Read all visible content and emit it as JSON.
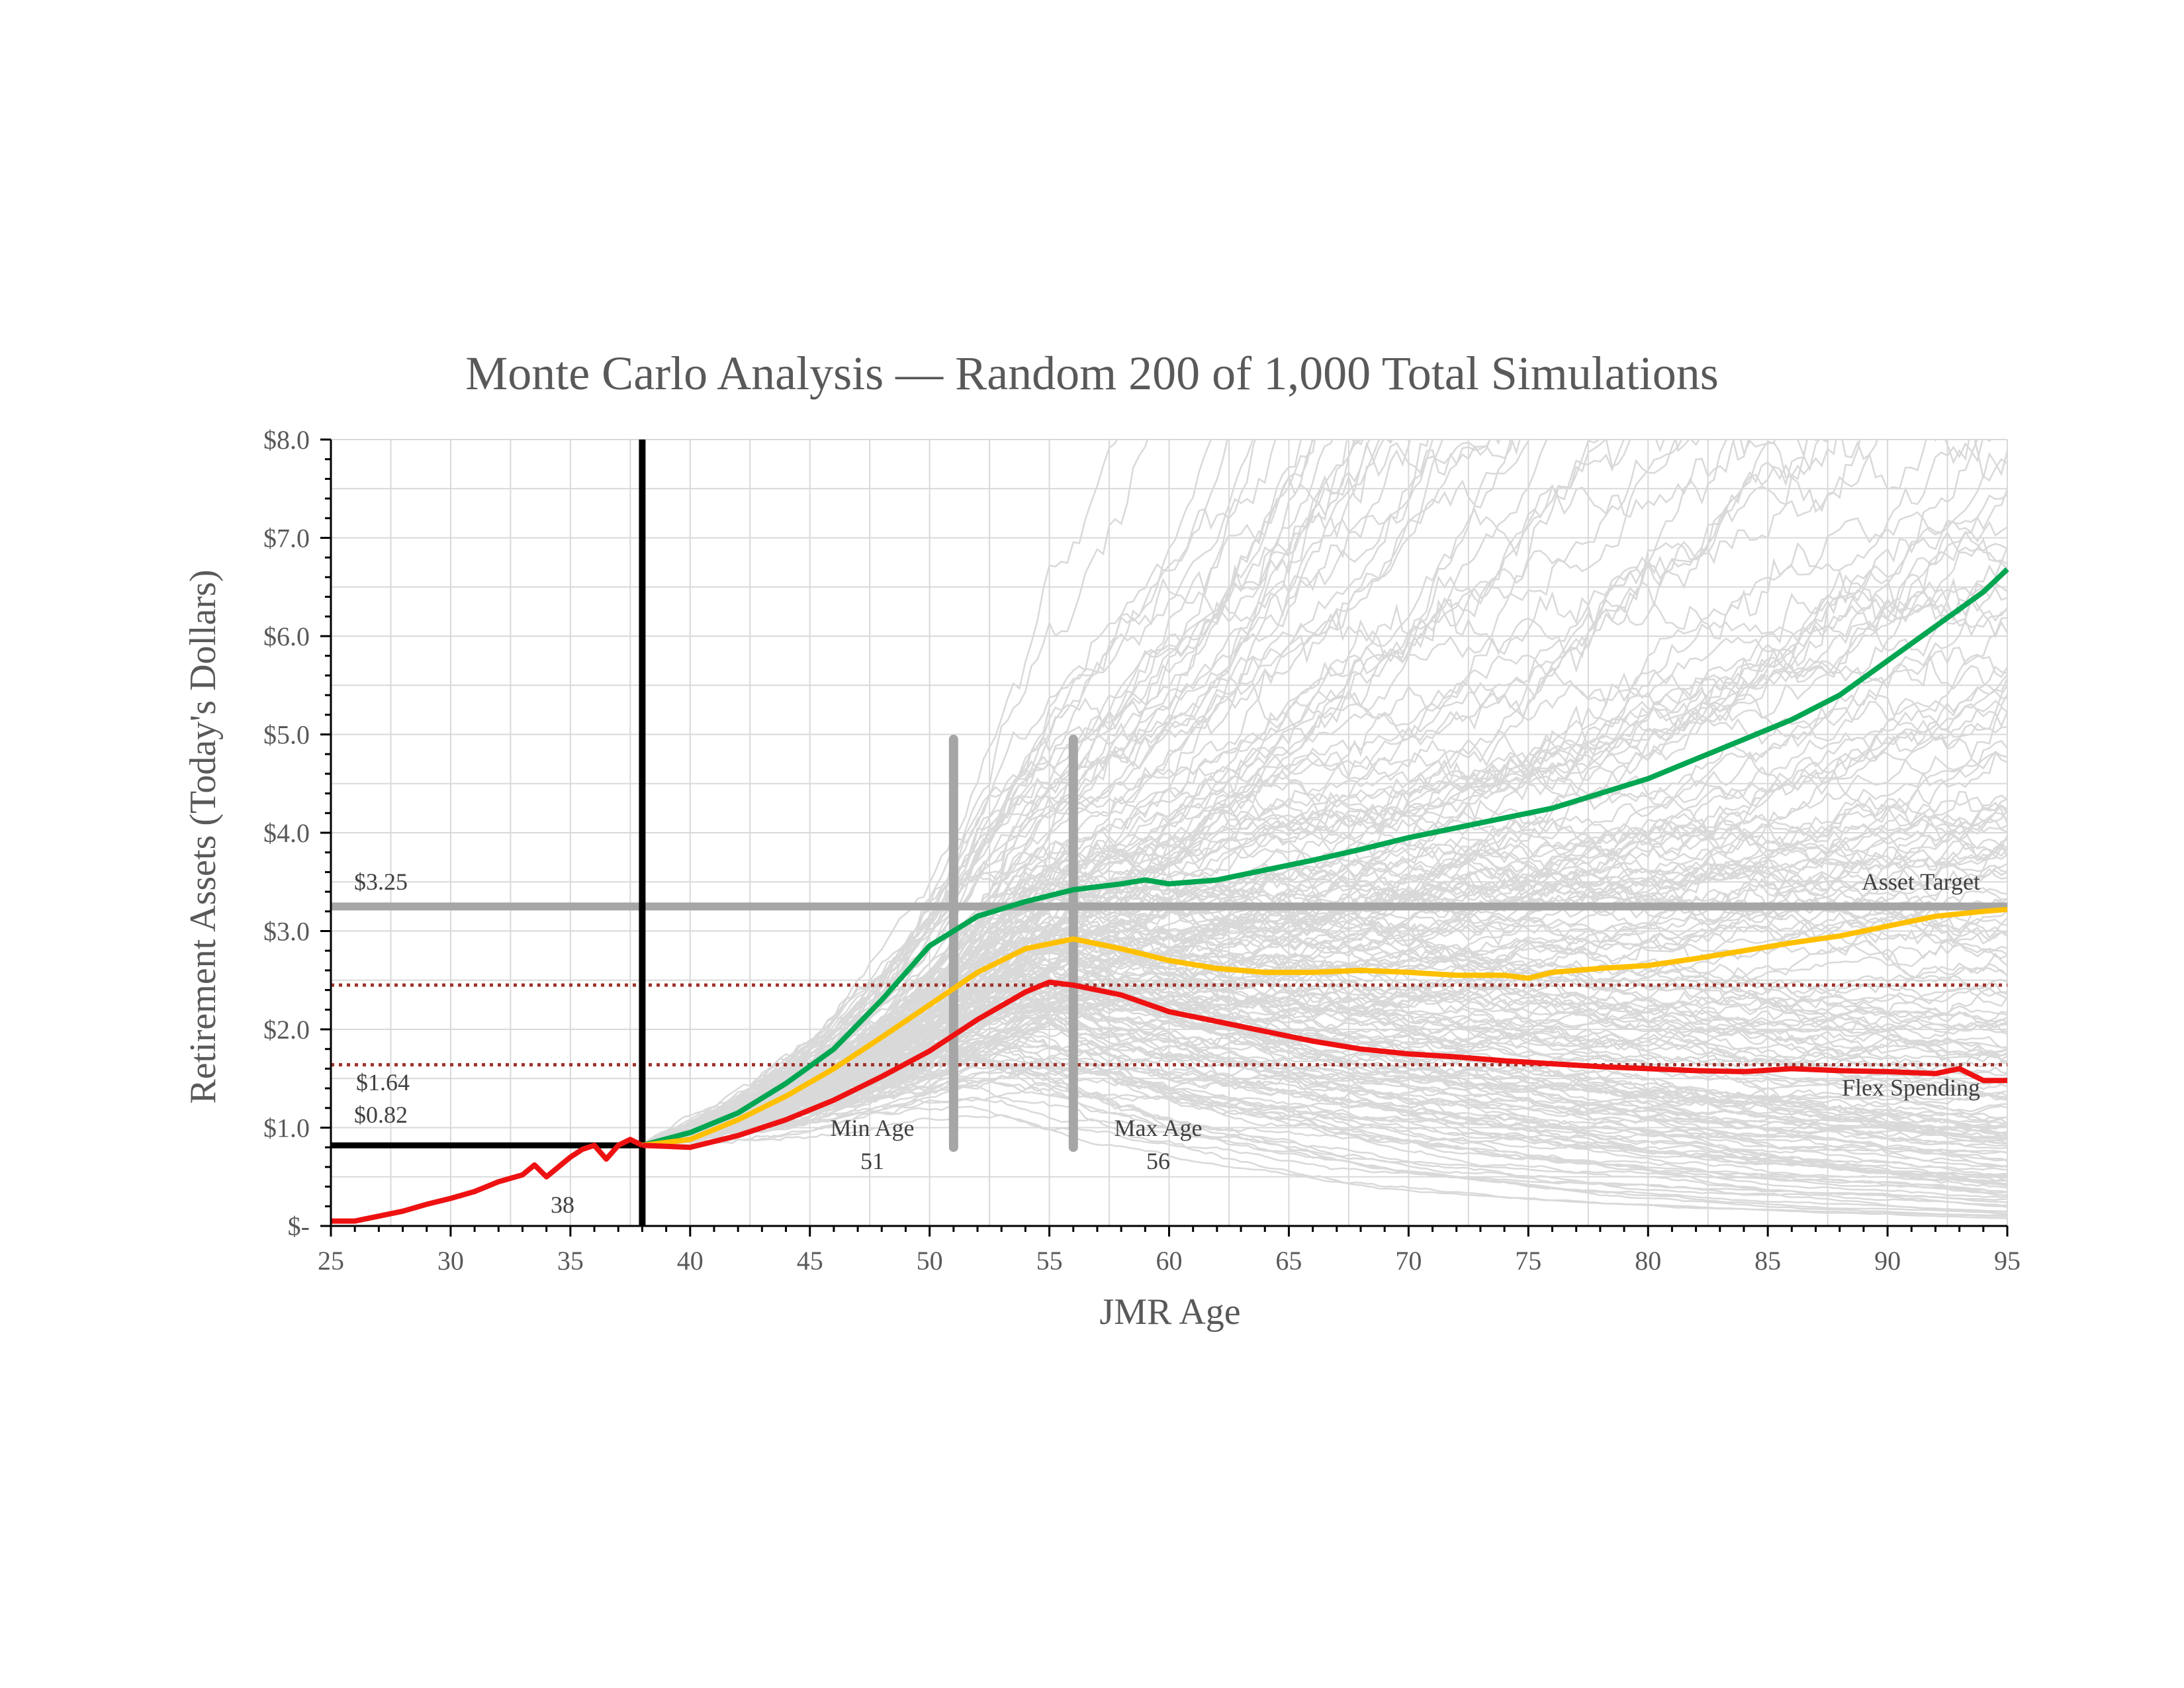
{
  "chart_data": {
    "type": "line",
    "title": "Monte Carlo Analysis — Random 200 of 1,000 Total Simulations",
    "xlabel": "JMR Age",
    "ylabel": "Retirement Assets (Today's Dollars)",
    "xlim": [
      25,
      95
    ],
    "ylim": [
      0,
      8
    ],
    "x_ticks": [
      25,
      30,
      35,
      40,
      45,
      50,
      55,
      60,
      65,
      70,
      75,
      80,
      85,
      90,
      95
    ],
    "y_ticks": [
      {
        "value": 0,
        "label": "$-"
      },
      {
        "value": 1,
        "label": "$1.0"
      },
      {
        "value": 2,
        "label": "$2.0"
      },
      {
        "value": 3,
        "label": "$3.0"
      },
      {
        "value": 4,
        "label": "$4.0"
      },
      {
        "value": 5,
        "label": "$5.0"
      },
      {
        "value": 6,
        "label": "$6.0"
      },
      {
        "value": 7,
        "label": "$7.0"
      },
      {
        "value": 8,
        "label": "$8.0"
      }
    ],
    "grid": true,
    "colors": {
      "simulations": "#d9d9d9",
      "green": "#00a651",
      "yellow": "#ffc000",
      "red": "#ee1111",
      "black": "#000000",
      "target": "#a6a6a6",
      "dotted": "#a0322d",
      "age_bar": "#a6a6a6",
      "grid": "#d9d9d9",
      "axis": "#000000"
    },
    "simulation_count_shown": 200,
    "simulation_start": {
      "x": 38,
      "y": 0.82
    },
    "series": [
      {
        "name": "History",
        "color": "red",
        "x": [
          25,
          26,
          27,
          28,
          29,
          30,
          31,
          32,
          33,
          33.5,
          34,
          34.5,
          35,
          35.5,
          36,
          36.5,
          37,
          37.5,
          38
        ],
        "y": [
          0.05,
          0.05,
          0.1,
          0.15,
          0.22,
          0.28,
          0.35,
          0.45,
          0.52,
          0.62,
          0.5,
          0.6,
          0.7,
          0.78,
          0.82,
          0.68,
          0.82,
          0.88,
          0.82
        ]
      },
      {
        "name": "Green projection",
        "color": "green",
        "x": [
          38,
          40,
          42,
          44,
          46,
          48,
          50,
          52,
          54,
          56,
          58,
          59,
          60,
          62,
          64,
          66,
          68,
          70,
          72,
          74,
          76,
          78,
          80,
          82,
          84,
          86,
          88,
          90,
          92,
          94,
          95
        ],
        "y": [
          0.82,
          0.95,
          1.15,
          1.45,
          1.8,
          2.3,
          2.85,
          3.15,
          3.3,
          3.42,
          3.48,
          3.52,
          3.48,
          3.52,
          3.62,
          3.72,
          3.83,
          3.95,
          4.05,
          4.15,
          4.25,
          4.4,
          4.55,
          4.75,
          4.95,
          5.15,
          5.4,
          5.75,
          6.1,
          6.45,
          6.68
        ]
      },
      {
        "name": "Yellow projection",
        "color": "yellow",
        "x": [
          38,
          40,
          42,
          44,
          46,
          48,
          50,
          52,
          54,
          56,
          58,
          60,
          62,
          64,
          66,
          68,
          70,
          72,
          74,
          75,
          76,
          78,
          80,
          82,
          84,
          86,
          88,
          90,
          92,
          94,
          95
        ],
        "y": [
          0.82,
          0.88,
          1.08,
          1.32,
          1.6,
          1.92,
          2.25,
          2.58,
          2.82,
          2.92,
          2.82,
          2.7,
          2.62,
          2.58,
          2.58,
          2.6,
          2.58,
          2.55,
          2.55,
          2.52,
          2.58,
          2.62,
          2.65,
          2.72,
          2.8,
          2.88,
          2.95,
          3.05,
          3.15,
          3.2,
          3.22
        ]
      },
      {
        "name": "Red projection",
        "color": "red",
        "x": [
          38,
          40,
          42,
          44,
          46,
          48,
          50,
          52,
          54,
          55,
          56,
          58,
          60,
          62,
          64,
          66,
          68,
          70,
          72,
          74,
          76,
          78,
          80,
          82,
          84,
          86,
          88,
          90,
          92,
          93,
          94,
          95
        ],
        "y": [
          0.82,
          0.8,
          0.92,
          1.08,
          1.28,
          1.52,
          1.78,
          2.1,
          2.38,
          2.48,
          2.45,
          2.35,
          2.18,
          2.08,
          1.98,
          1.88,
          1.8,
          1.75,
          1.72,
          1.68,
          1.65,
          1.62,
          1.6,
          1.58,
          1.57,
          1.6,
          1.58,
          1.57,
          1.55,
          1.6,
          1.48,
          1.48
        ]
      }
    ],
    "reference_lines": [
      {
        "orientation": "horizontal",
        "value": 3.25,
        "style": "solid",
        "color": "target",
        "label": "$3.25",
        "right_label": "Asset Target"
      },
      {
        "orientation": "horizontal",
        "value": 2.45,
        "style": "dotted",
        "color": "dotted"
      },
      {
        "orientation": "horizontal",
        "value": 1.64,
        "style": "dotted",
        "color": "dotted",
        "label": "$1.64",
        "right_label": "Flex Spending"
      },
      {
        "orientation": "vertical",
        "value": 38,
        "style": "solid",
        "color": "black",
        "label": "38"
      },
      {
        "orientation": "horizontal",
        "value": 0.82,
        "from_x": 25,
        "to_x": 38,
        "style": "solid",
        "color": "black",
        "label": "$0.82"
      }
    ],
    "age_bars": [
      {
        "name": "Min Age",
        "value": 51,
        "label": "Min Age",
        "value_label": "51",
        "y_from": 0.8,
        "y_to": 4.95
      },
      {
        "name": "Max Age",
        "value": 56,
        "label": "Max Age",
        "value_label": "56",
        "y_from": 0.8,
        "y_to": 4.95
      }
    ],
    "annotations": {
      "target_value": "$3.25",
      "target_name": "Asset Target",
      "flex_value": "$1.64",
      "flex_name": "Flex Spending",
      "current_value": "$0.82",
      "current_age": "38",
      "min_age_label": "Min Age",
      "min_age_value": "51",
      "max_age_label": "Max Age",
      "max_age_value": "56"
    }
  }
}
